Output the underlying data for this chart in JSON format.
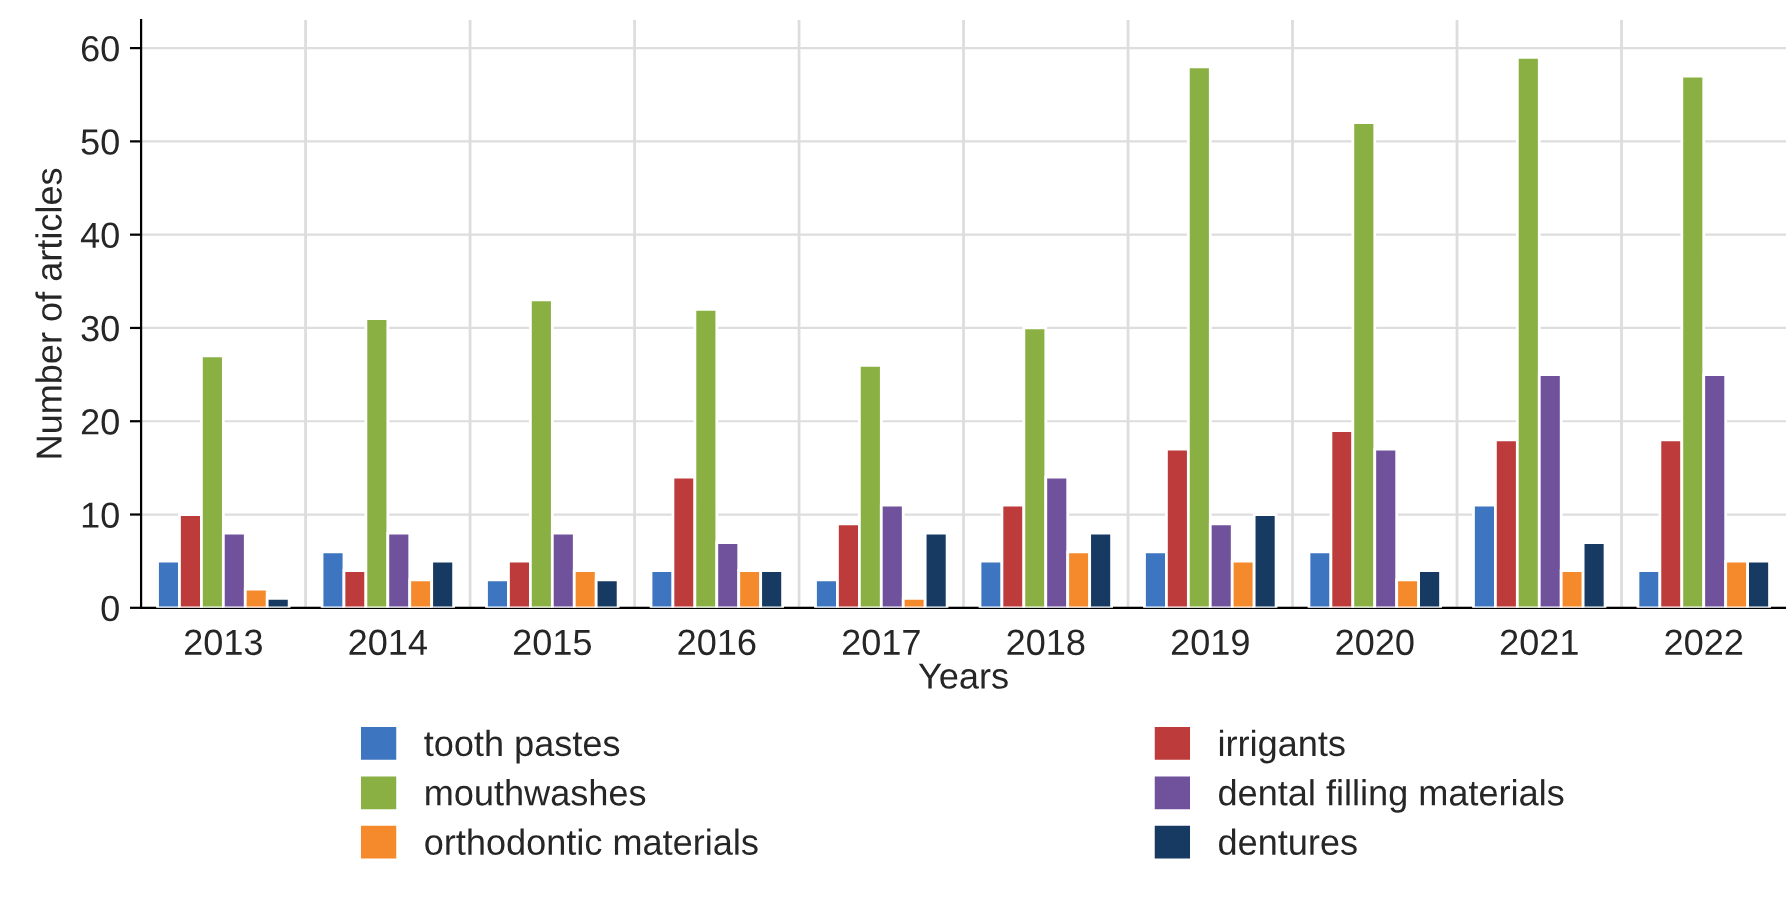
{
  "chart_data": {
    "type": "bar",
    "xlabel": "Years",
    "ylabel": "Number of articles",
    "categories": [
      "2013",
      "2014",
      "2015",
      "2016",
      "2017",
      "2018",
      "2019",
      "2020",
      "2021",
      "2022"
    ],
    "series": [
      {
        "name": "tooth pastes",
        "color": "#3d75c0",
        "values": [
          5,
          6,
          3,
          4,
          3,
          5,
          6,
          6,
          11,
          4
        ]
      },
      {
        "name": "irrigants",
        "color": "#bd3b3b",
        "values": [
          10,
          4,
          5,
          14,
          9,
          11,
          17,
          19,
          18,
          18
        ]
      },
      {
        "name": "mouthwashes",
        "color": "#8ab043",
        "values": [
          27,
          31,
          33,
          32,
          26,
          30,
          58,
          52,
          59,
          57
        ]
      },
      {
        "name": "dental filling materials",
        "color": "#70529c",
        "values": [
          8,
          8,
          8,
          7,
          11,
          14,
          9,
          17,
          25,
          25
        ]
      },
      {
        "name": "orthodontic materials",
        "color": "#f58a2c",
        "values": [
          2,
          3,
          4,
          4,
          1,
          6,
          5,
          3,
          4,
          5
        ]
      },
      {
        "name": "dentures",
        "color": "#163a62",
        "values": [
          1,
          5,
          3,
          4,
          8,
          8,
          10,
          4,
          7,
          5
        ]
      }
    ],
    "ylim": [
      0,
      63
    ],
    "yticks": [
      0,
      10,
      20,
      30,
      40,
      50,
      60
    ],
    "grid": true,
    "legend": "bottom"
  }
}
